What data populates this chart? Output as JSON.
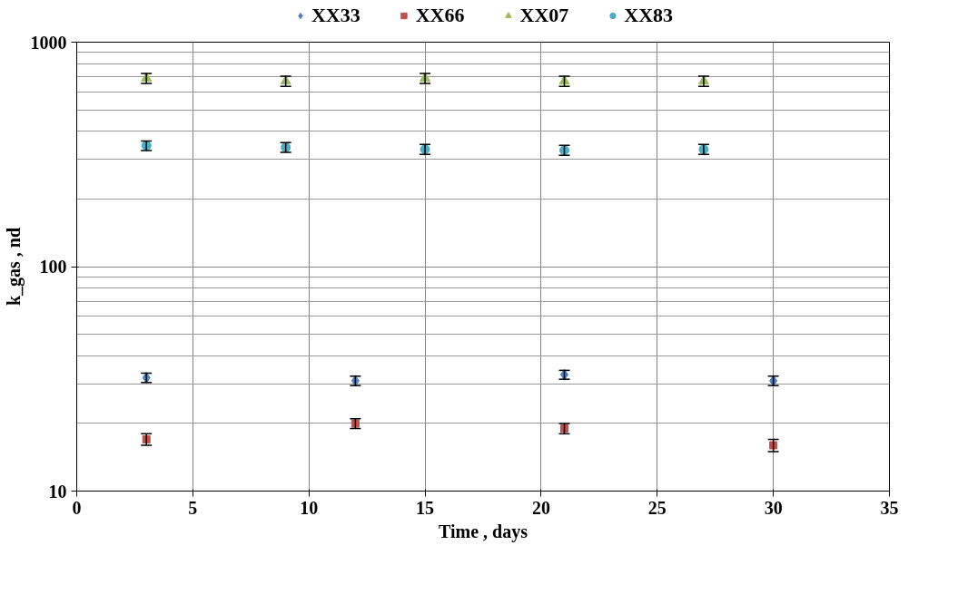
{
  "chart_data": {
    "type": "scatter",
    "xlabel": "Time , days",
    "ylabel": "k_gas , nd",
    "xlim": [
      0,
      35
    ],
    "xticks": [
      0,
      5,
      10,
      15,
      20,
      25,
      30,
      35
    ],
    "ylim": [
      10,
      1000
    ],
    "yticks": [
      10,
      100,
      1000
    ],
    "log": "y",
    "grid": true,
    "legend": "top",
    "series": [
      {
        "name": "XX33",
        "color": "#4f81bd",
        "marker": "diamond",
        "x": [
          3,
          12,
          21,
          30
        ],
        "values": [
          32,
          31,
          33,
          31
        ],
        "errors": [
          1.5,
          1.5,
          1.5,
          1.5
        ]
      },
      {
        "name": "XX66",
        "color": "#c0504d",
        "marker": "square",
        "x": [
          3,
          12,
          21,
          30
        ],
        "values": [
          17,
          20,
          19,
          16
        ],
        "errors": [
          1,
          1,
          1,
          1
        ]
      },
      {
        "name": "XX07",
        "color": "#9bbb59",
        "marker": "triangle",
        "x": [
          3,
          9,
          15,
          21,
          27
        ],
        "values": [
          690,
          670,
          690,
          670,
          670
        ],
        "errors": [
          35,
          35,
          35,
          35,
          35
        ]
      },
      {
        "name": "XX83",
        "color": "#4bacc6",
        "marker": "circle",
        "x": [
          3,
          9,
          15,
          21,
          27
        ],
        "values": [
          346,
          340,
          333,
          330,
          333
        ],
        "errors": [
          17,
          17,
          17,
          17,
          17
        ]
      }
    ]
  }
}
